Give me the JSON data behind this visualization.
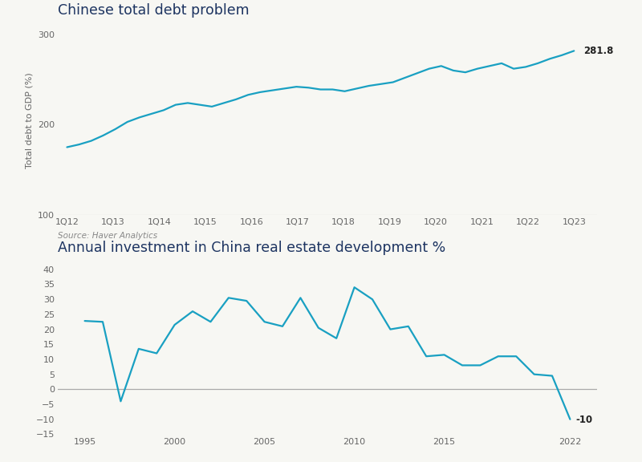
{
  "chart1": {
    "title": "Chinese total debt problem",
    "ylabel": "Total debt to GDP (%)",
    "source": "Source: Haver Analytics",
    "x_labels": [
      "1Q12",
      "1Q13",
      "1Q14",
      "1Q15",
      "1Q16",
      "1Q17",
      "1Q18",
      "1Q19",
      "1Q20",
      "1Q21",
      "1Q22",
      "1Q23"
    ],
    "x_num": [
      0,
      1,
      2,
      3,
      4,
      5,
      6,
      7,
      8,
      9,
      10,
      11
    ],
    "y_values": [
      175,
      178,
      182,
      188,
      195,
      203,
      208,
      212,
      216,
      222,
      224,
      222,
      220,
      224,
      228,
      233,
      236,
      238,
      240,
      242,
      241,
      239,
      239,
      237,
      240,
      243,
      245,
      247,
      252,
      257,
      262,
      265,
      260,
      258,
      262,
      265,
      268,
      262,
      264,
      268,
      273,
      277,
      281.8
    ],
    "ylim": [
      100,
      310
    ],
    "yticks": [
      100,
      200,
      300
    ],
    "last_label": "281.8",
    "line_color": "#19a0c2",
    "title_color": "#1d3461",
    "title_fontsize": 12.5
  },
  "chart2": {
    "title": "Annual investment in China real estate development %",
    "x_values": [
      1995,
      1996,
      1997,
      1998,
      1999,
      2000,
      2001,
      2002,
      2003,
      2004,
      2005,
      2006,
      2007,
      2008,
      2009,
      2010,
      2011,
      2012,
      2013,
      2014,
      2015,
      2016,
      2017,
      2018,
      2019,
      2020,
      2021,
      2022
    ],
    "y_values": [
      22.8,
      22.5,
      -4.0,
      13.5,
      12.0,
      21.5,
      26.0,
      22.5,
      30.5,
      29.5,
      22.5,
      21.0,
      30.5,
      20.5,
      17.0,
      34.0,
      30.0,
      20.0,
      21.0,
      11.0,
      11.5,
      8.0,
      8.0,
      11.0,
      11.0,
      5.0,
      4.5,
      -10.0
    ],
    "ylim": [
      -15,
      42
    ],
    "yticks": [
      -15,
      -10,
      -5,
      0,
      5,
      10,
      15,
      20,
      25,
      30,
      35,
      40
    ],
    "xticks": [
      1995,
      2000,
      2005,
      2010,
      2015,
      2022
    ],
    "last_label": "-10",
    "line_color": "#19a0c2",
    "zero_line_color": "#aaaaaa",
    "title_color": "#1d3461",
    "title_fontsize": 12.5
  },
  "bg_color": "#f7f7f3",
  "axis_color": "#bbbbbb",
  "tick_color": "#666666",
  "source_color": "#888888"
}
